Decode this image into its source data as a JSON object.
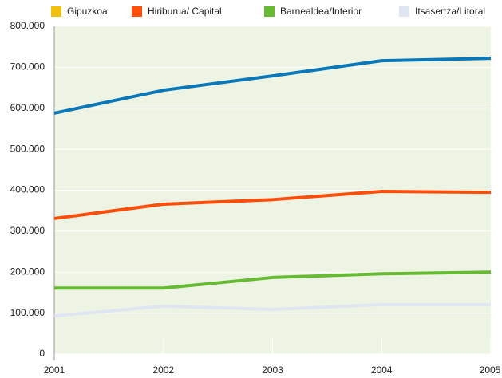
{
  "chart_data": {
    "type": "line",
    "x": [
      2001,
      2002,
      2003,
      2004,
      2005
    ],
    "xlim": [
      2001,
      2005
    ],
    "xticks": [
      2001,
      2002,
      2003,
      2004,
      2005
    ],
    "ylim": [
      0,
      800000
    ],
    "yticks": [
      0,
      {
        "value": 100000,
        "label": "100.000"
      },
      {
        "value": 200000,
        "label": "200.000"
      },
      {
        "value": 300000,
        "label": "300.000"
      },
      {
        "value": 400000,
        "label": "400.000"
      },
      {
        "value": 500000,
        "label": "500.000"
      },
      {
        "value": 600000,
        "label": "600.000"
      },
      {
        "value": 700000,
        "label": "700.000"
      },
      {
        "value": 800000,
        "label": "800.000"
      }
    ],
    "grid": true,
    "legend": "top",
    "series": [
      {
        "name": "Gipuzkoa",
        "color": "#0a78b8",
        "swatch_color": "#f0c010",
        "values": [
          588000,
          644000,
          679000,
          716000,
          722000
        ]
      },
      {
        "name": "Hiriburua/ Capital",
        "color": "#ff4d0a",
        "swatch_color": "#ff4d0a",
        "values": [
          331000,
          366000,
          377000,
          397000,
          395000
        ]
      },
      {
        "name": "Barnealdea/Interior",
        "color": "#66bb33",
        "swatch_color": "#66bb33",
        "values": [
          161000,
          161000,
          187000,
          196000,
          200000
        ]
      },
      {
        "name": "Itsasertza/Litoral",
        "color": "#dfe6f2",
        "swatch_color": "#dfe6f2",
        "values": [
          93000,
          117000,
          109000,
          121000,
          121000
        ]
      }
    ]
  }
}
